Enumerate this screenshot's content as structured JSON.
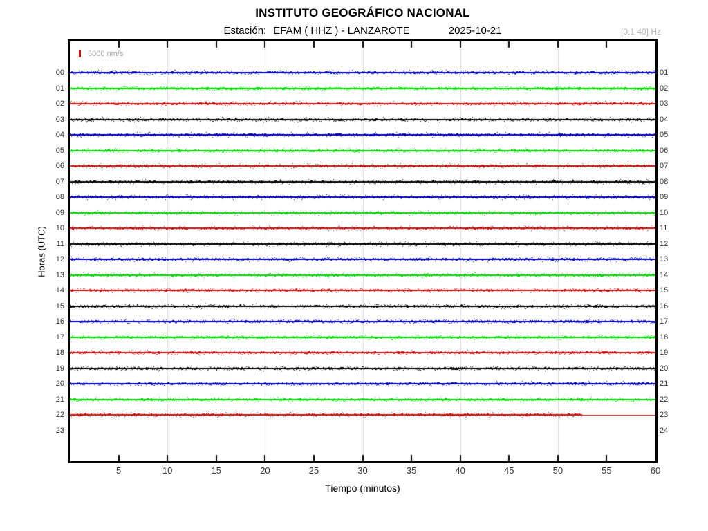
{
  "header": {
    "title": "INSTITUTO GEOGRÁFICO NACIONAL",
    "station_label": "Estación:",
    "station": "EFAM ( HHZ ) - LANZAROTE",
    "date": "2025-10-21",
    "filter_band": "[0.1 40] Hz"
  },
  "scale": {
    "label": "5000 nm/s",
    "marker_color": "#cc1111"
  },
  "chart_data": {
    "type": "line",
    "subtype": "helicorder-seismogram",
    "title": "INSTITUTO GEOGRÁFICO NACIONAL",
    "station": "EFAM ( HHZ ) - LANZAROTE",
    "date": "2025-10-21",
    "xlabel": "Tiempo (minutos)",
    "ylabel": "Horas (UTC)",
    "x_range_minutes": [
      0,
      60
    ],
    "x_ticks": [
      5,
      10,
      15,
      20,
      25,
      30,
      35,
      40,
      45,
      50,
      55,
      60
    ],
    "x_gridlines_minutes": [
      10,
      20,
      30,
      40,
      50
    ],
    "grid": true,
    "grid_color": "#dcdcdc",
    "amplitude_scale": "5000 nm/s",
    "colors": {
      "blue": "#0000bb",
      "green": "#00dd00",
      "red": "#cc1111",
      "black": "#000000"
    },
    "rows": [
      {
        "hour": 0,
        "left_label": "00",
        "right_label": "01",
        "color": "blue",
        "signal": "background noise, flat",
        "data_start_minute": 0,
        "data_end_minute": 60
      },
      {
        "hour": 1,
        "left_label": "01",
        "right_label": "02",
        "color": "green",
        "signal": "background noise, flat",
        "data_start_minute": 0,
        "data_end_minute": 60
      },
      {
        "hour": 2,
        "left_label": "02",
        "right_label": "03",
        "color": "red",
        "signal": "background noise, flat",
        "data_start_minute": 0,
        "data_end_minute": 60
      },
      {
        "hour": 3,
        "left_label": "03",
        "right_label": "04",
        "color": "black",
        "signal": "background noise, flat",
        "data_start_minute": 0,
        "data_end_minute": 60
      },
      {
        "hour": 4,
        "left_label": "04",
        "right_label": "05",
        "color": "blue",
        "signal": "background noise, flat",
        "data_start_minute": 0,
        "data_end_minute": 60
      },
      {
        "hour": 5,
        "left_label": "05",
        "right_label": "06",
        "color": "green",
        "signal": "background noise, flat",
        "data_start_minute": 0,
        "data_end_minute": 60
      },
      {
        "hour": 6,
        "left_label": "06",
        "right_label": "07",
        "color": "red",
        "signal": "background noise, flat",
        "data_start_minute": 0,
        "data_end_minute": 60
      },
      {
        "hour": 7,
        "left_label": "07",
        "right_label": "08",
        "color": "black",
        "signal": "background noise, flat",
        "data_start_minute": 0,
        "data_end_minute": 60
      },
      {
        "hour": 8,
        "left_label": "08",
        "right_label": "09",
        "color": "blue",
        "signal": "background noise, flat",
        "data_start_minute": 0,
        "data_end_minute": 60
      },
      {
        "hour": 9,
        "left_label": "09",
        "right_label": "10",
        "color": "green",
        "signal": "background noise, flat",
        "data_start_minute": 0,
        "data_end_minute": 60
      },
      {
        "hour": 10,
        "left_label": "10",
        "right_label": "11",
        "color": "red",
        "signal": "background noise, flat",
        "data_start_minute": 0,
        "data_end_minute": 60
      },
      {
        "hour": 11,
        "left_label": "11",
        "right_label": "12",
        "color": "black",
        "signal": "background noise, flat",
        "data_start_minute": 0,
        "data_end_minute": 60
      },
      {
        "hour": 12,
        "left_label": "12",
        "right_label": "13",
        "color": "blue",
        "signal": "background noise, flat",
        "data_start_minute": 0,
        "data_end_minute": 60
      },
      {
        "hour": 13,
        "left_label": "13",
        "right_label": "14",
        "color": "green",
        "signal": "background noise, flat",
        "data_start_minute": 0,
        "data_end_minute": 60
      },
      {
        "hour": 14,
        "left_label": "14",
        "right_label": "15",
        "color": "red",
        "signal": "background noise, flat",
        "data_start_minute": 0,
        "data_end_minute": 60
      },
      {
        "hour": 15,
        "left_label": "15",
        "right_label": "16",
        "color": "black",
        "signal": "background noise, flat",
        "data_start_minute": 0,
        "data_end_minute": 60
      },
      {
        "hour": 16,
        "left_label": "16",
        "right_label": "17",
        "color": "blue",
        "signal": "background noise, flat",
        "data_start_minute": 0,
        "data_end_minute": 60
      },
      {
        "hour": 17,
        "left_label": "17",
        "right_label": "18",
        "color": "green",
        "signal": "background noise, flat",
        "data_start_minute": 0,
        "data_end_minute": 60
      },
      {
        "hour": 18,
        "left_label": "18",
        "right_label": "19",
        "color": "red",
        "signal": "background noise, flat",
        "data_start_minute": 0,
        "data_end_minute": 60
      },
      {
        "hour": 19,
        "left_label": "19",
        "right_label": "20",
        "color": "black",
        "signal": "background noise, flat",
        "data_start_minute": 0,
        "data_end_minute": 60
      },
      {
        "hour": 20,
        "left_label": "20",
        "right_label": "21",
        "color": "blue",
        "signal": "background noise, flat",
        "data_start_minute": 0,
        "data_end_minute": 60
      },
      {
        "hour": 21,
        "left_label": "21",
        "right_label": "22",
        "color": "green",
        "signal": "background noise, flat",
        "data_start_minute": 0,
        "data_end_minute": 60
      },
      {
        "hour": 22,
        "left_label": "22",
        "right_label": "23",
        "color": "red",
        "signal": "background noise, then flatline",
        "data_start_minute": 0,
        "data_end_minute": 52.5,
        "flatline_to_minute": 60
      },
      {
        "hour": 23,
        "left_label": "23",
        "right_label": "24",
        "color": "black",
        "signal": "no data",
        "data_start_minute": 0,
        "data_end_minute": 0
      }
    ]
  }
}
